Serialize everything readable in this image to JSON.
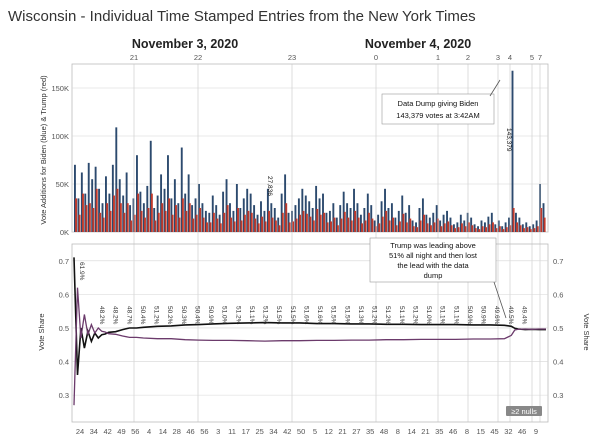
{
  "title": "Wisconsin - Individual Time Stamped Entries from the New York Times",
  "date_headers": [
    "November 3, 2020",
    "November 4, 2020"
  ],
  "colors": {
    "biden": "#2c4a6e",
    "trump": "#c0392b",
    "share_black": "#111111",
    "share_purple": "#6b3a6b",
    "grid": "#d6d6d6"
  },
  "chart_data": [
    {
      "type": "bar",
      "ylabel": "Vote Additions for Biden (blue) & Trump (red)",
      "ylim": [
        0,
        175000
      ],
      "yticks": [
        0,
        50000,
        100000,
        150000
      ],
      "ytick_labels": [
        "0K",
        "50K",
        "100K",
        "150K"
      ],
      "top_hour_labels": [
        "21",
        "22",
        "23",
        "0",
        "1",
        "2",
        "3",
        "4",
        "5",
        "7"
      ],
      "annotations": [
        {
          "text": [
            "Data Dump giving Biden",
            "143,379 votes at 3:42AM"
          ]
        }
      ],
      "value_labels": [
        "27,836",
        "143,379"
      ],
      "series": [
        {
          "color": "biden",
          "values": [
            70000,
            35000,
            62000,
            40000,
            72000,
            55000,
            68000,
            45000,
            30000,
            58000,
            40000,
            70000,
            109000,
            55000,
            38000,
            62000,
            28000,
            35000,
            80000,
            42000,
            30000,
            48000,
            95000,
            25000,
            38000,
            60000,
            45000,
            80000,
            35000,
            55000,
            30000,
            88000,
            40000,
            60000,
            28000,
            35000,
            50000,
            30000,
            22000,
            20000,
            38000,
            28000,
            18000,
            42000,
            55000,
            30000,
            22000,
            50000,
            25000,
            35000,
            45000,
            40000,
            28000,
            18000,
            32000,
            22000,
            45000,
            30000,
            25000,
            15000,
            40000,
            60000,
            20000,
            22000,
            28000,
            35000,
            45000,
            38000,
            32000,
            25000,
            48000,
            35000,
            40000,
            20000,
            22000,
            30000,
            15000,
            28000,
            42000,
            30000,
            25000,
            45000,
            30000,
            18000,
            25000,
            40000,
            28000,
            12000,
            18000,
            32000,
            45000,
            25000,
            30000,
            15000,
            22000,
            38000,
            20000,
            28000,
            12000,
            10000,
            25000,
            35000,
            18000,
            15000,
            20000,
            28000,
            12000,
            18000,
            22000,
            15000,
            8000,
            10000,
            18000,
            12000,
            20000,
            15000,
            8000,
            6000,
            12000,
            10000,
            16000,
            20000,
            8000,
            12000,
            6000,
            10000,
            15000,
            168000,
            20000,
            15000,
            8000,
            10000,
            6000,
            8000,
            12000,
            50000,
            30000
          ]
        },
        {
          "color": "trump",
          "values": [
            35000,
            18000,
            40000,
            28000,
            30000,
            25000,
            45000,
            20000,
            15000,
            30000,
            22000,
            38000,
            45000,
            30000,
            20000,
            30000,
            12000,
            18000,
            40000,
            22000,
            15000,
            25000,
            40000,
            12000,
            20000,
            30000,
            22000,
            35000,
            18000,
            28000,
            15000,
            35000,
            22000,
            30000,
            14000,
            18000,
            25000,
            15000,
            10000,
            10000,
            20000,
            14000,
            9000,
            20000,
            28000,
            15000,
            11000,
            25000,
            12000,
            18000,
            22000,
            20000,
            14000,
            9000,
            16000,
            11000,
            22000,
            15000,
            12000,
            7000,
            20000,
            30000,
            10000,
            11000,
            14000,
            18000,
            22000,
            19000,
            16000,
            12000,
            24000,
            18000,
            20000,
            10000,
            11000,
            15000,
            7000,
            14000,
            21000,
            15000,
            12000,
            22000,
            15000,
            9000,
            12000,
            20000,
            14000,
            6000,
            9000,
            16000,
            22000,
            12000,
            15000,
            7000,
            11000,
            19000,
            10000,
            14000,
            6000,
            5000,
            12000,
            18000,
            9000,
            7000,
            10000,
            14000,
            6000,
            9000,
            11000,
            7000,
            4000,
            5000,
            9000,
            6000,
            10000,
            7000,
            4000,
            3000,
            6000,
            5000,
            8000,
            10000,
            4000,
            6000,
            3000,
            5000,
            7000,
            25000,
            10000,
            7000,
            4000,
            5000,
            3000,
            4000,
            6000,
            25000,
            15000
          ]
        }
      ]
    },
    {
      "type": "line",
      "ylabel": "Vote Share",
      "ylim": [
        0.22,
        0.75
      ],
      "yticks": [
        0.3,
        0.4,
        0.5,
        0.6,
        0.7
      ],
      "x_minute_labels": [
        "24",
        "34",
        "42",
        "49",
        "56",
        "4",
        "14",
        "28",
        "46",
        "56",
        "3",
        "11",
        "17",
        "25",
        "34",
        "42",
        "50",
        "5",
        "12",
        "21",
        "27",
        "35",
        "48",
        "8",
        "14",
        "21",
        "35",
        "46",
        "8",
        "15",
        "45",
        "32",
        "46",
        "9"
      ],
      "annotations": [
        {
          "text": [
            "Trump was leading above",
            "51% all night and then lost",
            "the lead with the data",
            "dump"
          ]
        },
        {
          "text": [
            "≥2 nulls"
          ]
        }
      ],
      "pct_labels": [
        "61.9%",
        "48.2%",
        "48.2%",
        "48.7%",
        "50.4%",
        "51.2%",
        "50.2%",
        "50.3%",
        "50.4%",
        "50.9%",
        "51.0%",
        "51.2%",
        "51.1%",
        "51.2%",
        "51.5%",
        "51.5%",
        "51.6%",
        "51.6%",
        "51.5%",
        "51.5%",
        "51.3%",
        "51.2%",
        "51.2%",
        "51.1%",
        "51.2%",
        "51.0%",
        "51.1%",
        "51.1%",
        "50.9%",
        "50.9%",
        "49.6%",
        "49.5%",
        "49.4%"
      ],
      "series": [
        {
          "color": "share_black",
          "x": [
            0,
            1,
            2,
            3,
            4,
            5,
            6,
            7,
            8,
            9,
            10,
            12,
            14,
            16,
            18,
            20,
            24,
            28,
            32,
            36,
            40,
            45,
            50,
            55,
            60,
            65,
            70,
            75,
            80,
            85,
            90,
            95,
            100,
            105,
            110,
            115,
            120,
            124,
            126,
            127,
            128,
            130,
            132,
            134,
            136
          ],
          "values": [
            0.71,
            0.36,
            0.5,
            0.44,
            0.49,
            0.46,
            0.485,
            0.47,
            0.48,
            0.482,
            0.487,
            0.489,
            0.495,
            0.5,
            0.5,
            0.502,
            0.505,
            0.506,
            0.509,
            0.51,
            0.512,
            0.514,
            0.515,
            0.516,
            0.515,
            0.515,
            0.513,
            0.513,
            0.512,
            0.512,
            0.511,
            0.511,
            0.51,
            0.51,
            0.51,
            0.509,
            0.509,
            0.508,
            0.505,
            0.499,
            0.497,
            0.495,
            0.496,
            0.495,
            0.495
          ]
        },
        {
          "color": "share_purple",
          "x": [
            0,
            1,
            2,
            3,
            4,
            5,
            6,
            7,
            8,
            9,
            10,
            12,
            14,
            16,
            18,
            20,
            24,
            28,
            32,
            36,
            40,
            45,
            50,
            55,
            60,
            65,
            70,
            75,
            80,
            85,
            90,
            95,
            100,
            105,
            110,
            115,
            120,
            124,
            126,
            127,
            128,
            130,
            132,
            134,
            136
          ],
          "values": [
            0.27,
            0.62,
            0.47,
            0.54,
            0.48,
            0.51,
            0.485,
            0.5,
            0.49,
            0.488,
            0.483,
            0.481,
            0.476,
            0.472,
            0.472,
            0.47,
            0.468,
            0.468,
            0.465,
            0.464,
            0.463,
            0.463,
            0.462,
            0.461,
            0.462,
            0.462,
            0.463,
            0.463,
            0.464,
            0.464,
            0.465,
            0.465,
            0.466,
            0.466,
            0.466,
            0.467,
            0.467,
            0.468,
            0.478,
            0.494,
            0.496,
            0.497,
            0.496,
            0.497,
            0.497
          ]
        }
      ]
    }
  ]
}
